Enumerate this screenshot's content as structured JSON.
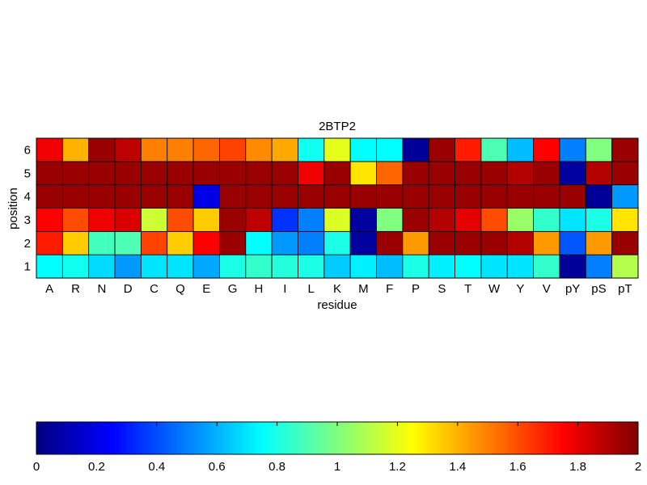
{
  "chart_data": {
    "type": "heatmap",
    "title": "2BTP2",
    "xlabel": "residue",
    "ylabel": "position",
    "x_categories": [
      "A",
      "R",
      "N",
      "D",
      "C",
      "Q",
      "E",
      "G",
      "H",
      "I",
      "L",
      "K",
      "M",
      "F",
      "P",
      "S",
      "T",
      "W",
      "Y",
      "V",
      "pY",
      "pS",
      "pT"
    ],
    "y_categories": [
      "1",
      "2",
      "3",
      "4",
      "5",
      "6"
    ],
    "colormap": "jet",
    "clim": [
      0,
      2
    ],
    "colorbar": {
      "orientation": "horizontal",
      "ticks": [
        0,
        0.2,
        0.4,
        0.6,
        0.8,
        1,
        1.2,
        1.4,
        1.6,
        1.8,
        2
      ],
      "tick_labels": [
        "0",
        "0.2",
        "0.4",
        "0.6",
        "0.8",
        "1",
        "1.2",
        "1.4",
        "1.6",
        "1.8",
        "2"
      ]
    },
    "values": [
      [
        0.75,
        0.78,
        0.68,
        0.55,
        0.7,
        0.7,
        0.58,
        0.8,
        0.85,
        0.82,
        0.8,
        0.65,
        0.72,
        0.62,
        0.8,
        0.72,
        0.75,
        0.7,
        0.7,
        0.85,
        0.05,
        0.5,
        1.1
      ],
      [
        1.7,
        1.35,
        0.88,
        0.9,
        1.62,
        1.35,
        1.76,
        1.95,
        0.75,
        0.55,
        0.5,
        0.8,
        0.06,
        1.95,
        1.45,
        1.95,
        1.95,
        1.95,
        1.9,
        1.45,
        0.42,
        1.45,
        1.95
      ],
      [
        1.75,
        1.6,
        1.78,
        1.82,
        1.15,
        1.6,
        1.35,
        1.95,
        1.88,
        0.35,
        0.5,
        1.18,
        0.06,
        1.0,
        1.95,
        1.9,
        1.8,
        1.6,
        1.05,
        0.85,
        0.7,
        0.8,
        1.3
      ],
      [
        1.95,
        1.95,
        1.95,
        1.95,
        1.95,
        1.95,
        0.2,
        1.95,
        1.95,
        1.95,
        1.95,
        1.95,
        1.95,
        1.95,
        1.95,
        1.95,
        1.95,
        1.95,
        1.95,
        1.95,
        1.95,
        0.05,
        0.55
      ],
      [
        1.95,
        1.95,
        1.95,
        1.95,
        1.95,
        1.95,
        1.95,
        1.95,
        1.95,
        1.95,
        1.78,
        1.95,
        1.3,
        1.55,
        1.95,
        1.95,
        1.95,
        1.95,
        1.9,
        1.95,
        0.06,
        1.9,
        1.95
      ],
      [
        1.78,
        1.4,
        1.95,
        1.88,
        1.5,
        1.5,
        1.55,
        1.62,
        1.48,
        1.42,
        0.78,
        1.2,
        0.75,
        0.75,
        0.05,
        1.95,
        1.7,
        0.9,
        0.62,
        1.75,
        0.5,
        1.0,
        1.95
      ]
    ]
  }
}
